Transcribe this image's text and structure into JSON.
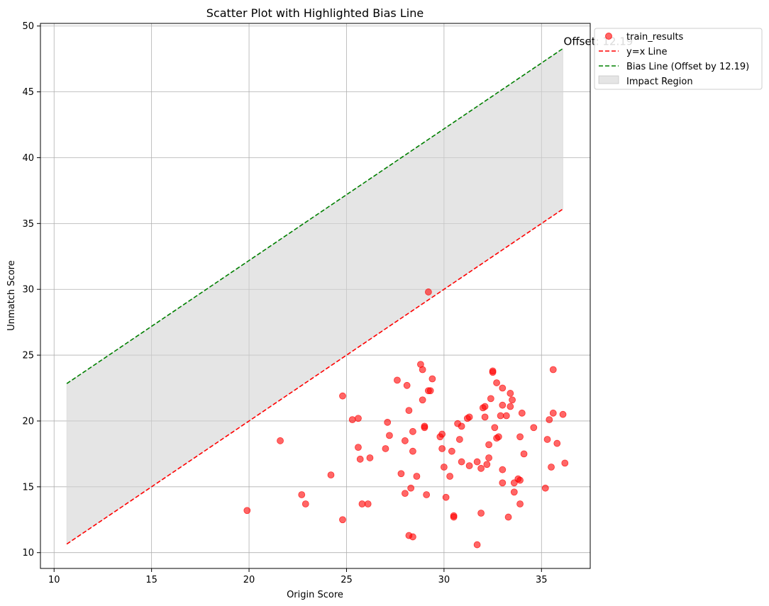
{
  "chart_data": {
    "type": "scatter",
    "title": "Scatter Plot with Highlighted Bias Line",
    "xlabel": "Origin Score",
    "ylabel": "Unmatch Score",
    "xlim": [
      9.3,
      37.5
    ],
    "ylim": [
      8.8,
      50.2
    ],
    "xticks": [
      10,
      15,
      20,
      25,
      30,
      35
    ],
    "yticks": [
      10,
      15,
      20,
      25,
      30,
      35,
      40,
      45,
      50
    ],
    "grid": true,
    "legend_position": "upper-right-outside",
    "offset": 12.19,
    "line_range": [
      10.65,
      36.1
    ],
    "annotation": "Offset: 12.19",
    "legend": [
      {
        "key": "scatter",
        "label": "train_results"
      },
      {
        "key": "identity",
        "label": "y=x Line"
      },
      {
        "key": "bias",
        "label": "Bias Line (Offset by 12.19)"
      },
      {
        "key": "region",
        "label": "Impact Region"
      }
    ],
    "colors": {
      "points": "#ff0000",
      "identity": "#ff0000",
      "bias": "#008000",
      "region": "#d3d3d3",
      "grid": "#b0b0b0"
    },
    "series": [
      {
        "name": "train_results",
        "points": [
          [
            19.9,
            13.2
          ],
          [
            21.6,
            18.5
          ],
          [
            22.7,
            14.4
          ],
          [
            22.9,
            13.7
          ],
          [
            24.2,
            15.9
          ],
          [
            24.8,
            12.5
          ],
          [
            24.8,
            21.9
          ],
          [
            25.3,
            20.1
          ],
          [
            25.6,
            20.2
          ],
          [
            25.6,
            18.0
          ],
          [
            25.7,
            17.1
          ],
          [
            25.8,
            13.7
          ],
          [
            26.1,
            13.7
          ],
          [
            26.2,
            17.2
          ],
          [
            27.0,
            17.9
          ],
          [
            27.1,
            19.9
          ],
          [
            27.2,
            18.9
          ],
          [
            27.6,
            23.1
          ],
          [
            27.8,
            16.0
          ],
          [
            28.0,
            18.5
          ],
          [
            28.0,
            14.5
          ],
          [
            28.1,
            22.7
          ],
          [
            28.2,
            20.8
          ],
          [
            28.2,
            11.3
          ],
          [
            28.3,
            14.9
          ],
          [
            28.4,
            19.2
          ],
          [
            28.4,
            17.7
          ],
          [
            28.4,
            11.2
          ],
          [
            28.6,
            15.8
          ],
          [
            28.8,
            24.3
          ],
          [
            28.9,
            23.9
          ],
          [
            28.9,
            21.6
          ],
          [
            29.0,
            19.6
          ],
          [
            29.0,
            19.5
          ],
          [
            29.1,
            14.4
          ],
          [
            29.2,
            29.8
          ],
          [
            29.2,
            22.3
          ],
          [
            29.3,
            22.3
          ],
          [
            29.4,
            23.2
          ],
          [
            29.8,
            18.8
          ],
          [
            29.9,
            19.0
          ],
          [
            29.9,
            17.9
          ],
          [
            30.0,
            16.5
          ],
          [
            30.1,
            14.2
          ],
          [
            30.3,
            15.8
          ],
          [
            30.4,
            17.7
          ],
          [
            30.5,
            12.8
          ],
          [
            30.5,
            12.7
          ],
          [
            30.7,
            19.8
          ],
          [
            30.8,
            18.6
          ],
          [
            30.9,
            19.6
          ],
          [
            30.9,
            16.9
          ],
          [
            31.2,
            20.2
          ],
          [
            31.3,
            20.3
          ],
          [
            31.3,
            16.6
          ],
          [
            31.7,
            10.6
          ],
          [
            31.7,
            16.9
          ],
          [
            31.9,
            16.4
          ],
          [
            31.9,
            13.0
          ],
          [
            32.0,
            21.0
          ],
          [
            32.1,
            21.1
          ],
          [
            32.1,
            20.3
          ],
          [
            32.2,
            16.7
          ],
          [
            32.3,
            17.2
          ],
          [
            32.3,
            18.2
          ],
          [
            32.4,
            21.7
          ],
          [
            32.5,
            23.8
          ],
          [
            32.5,
            23.7
          ],
          [
            32.6,
            19.5
          ],
          [
            32.7,
            18.7
          ],
          [
            32.7,
            22.9
          ],
          [
            32.8,
            18.8
          ],
          [
            32.9,
            20.4
          ],
          [
            33.0,
            22.5
          ],
          [
            33.0,
            21.2
          ],
          [
            33.0,
            16.3
          ],
          [
            33.0,
            15.3
          ],
          [
            33.2,
            20.4
          ],
          [
            33.3,
            12.7
          ],
          [
            33.4,
            22.1
          ],
          [
            33.4,
            21.1
          ],
          [
            33.5,
            21.6
          ],
          [
            33.6,
            15.3
          ],
          [
            33.6,
            14.6
          ],
          [
            33.8,
            15.6
          ],
          [
            33.9,
            15.5
          ],
          [
            33.9,
            13.7
          ],
          [
            33.9,
            18.8
          ],
          [
            34.0,
            20.6
          ],
          [
            34.1,
            17.5
          ],
          [
            34.6,
            19.5
          ],
          [
            35.2,
            14.9
          ],
          [
            35.3,
            18.6
          ],
          [
            35.4,
            20.1
          ],
          [
            35.5,
            16.5
          ],
          [
            35.6,
            23.9
          ],
          [
            35.6,
            20.6
          ],
          [
            35.8,
            18.3
          ],
          [
            36.1,
            20.5
          ],
          [
            36.2,
            16.8
          ]
        ]
      }
    ]
  }
}
